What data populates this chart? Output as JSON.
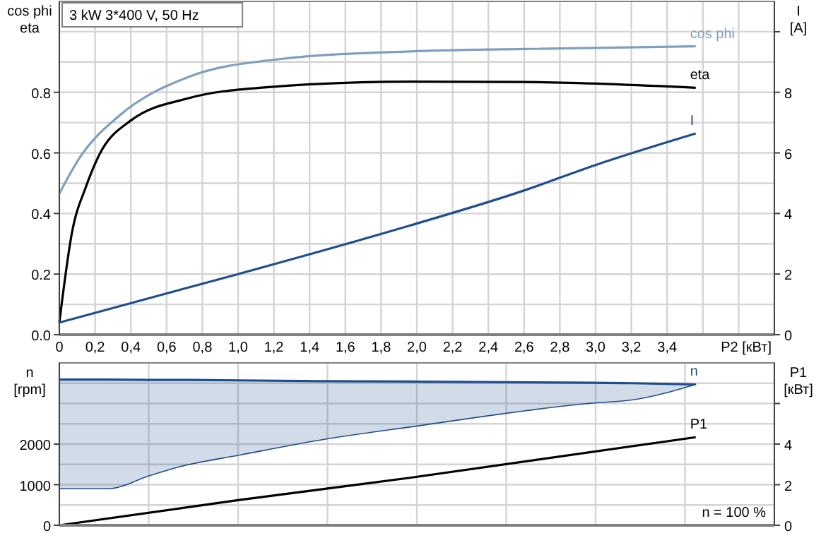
{
  "chart_data": [
    {
      "type": "line",
      "title": "3 kW   3*400 V, 50 Hz",
      "xlabel": "P2 [кВт]",
      "ylabel": "cos phi\neta",
      "y2label": "I\n[A]",
      "legend": false,
      "grid": true,
      "xlim": [
        0,
        4
      ],
      "xticks": [
        {
          "value": 0,
          "label": "0"
        },
        {
          "value": 0.2,
          "label": "0,2"
        },
        {
          "value": 0.4,
          "label": "0,4"
        },
        {
          "value": 0.6,
          "label": "0,6"
        },
        {
          "value": 0.8,
          "label": "0,8"
        },
        {
          "value": 1,
          "label": "1,0"
        },
        {
          "value": 1.2,
          "label": "1,2"
        },
        {
          "value": 1.4,
          "label": "1,4"
        },
        {
          "value": 1.6,
          "label": "1,6"
        },
        {
          "value": 1.8,
          "label": "1,8"
        },
        {
          "value": 2,
          "label": "2,0"
        },
        {
          "value": 2.2,
          "label": "2,2"
        },
        {
          "value": 2.4,
          "label": "2,4"
        },
        {
          "value": 2.6,
          "label": "2,6"
        },
        {
          "value": 2.8,
          "label": "2,8"
        },
        {
          "value": 3,
          "label": "3,0"
        },
        {
          "value": 3.2,
          "label": "3,2"
        },
        {
          "value": 3.4,
          "label": "3,4"
        },
        {
          "value": 3.6,
          "label": null
        },
        {
          "value": 3.8,
          "label": null
        }
      ],
      "ylim": [
        0,
        1.1
      ],
      "yticks": [
        {
          "value": 0,
          "label": "0.0"
        },
        {
          "value": 0.1,
          "label": null
        },
        {
          "value": 0.2,
          "label": "0.2"
        },
        {
          "value": 0.3,
          "label": null
        },
        {
          "value": 0.4,
          "label": "0.4"
        },
        {
          "value": 0.5,
          "label": null
        },
        {
          "value": 0.6,
          "label": "0.6"
        },
        {
          "value": 0.7,
          "label": null
        },
        {
          "value": 0.8,
          "label": "0.8"
        },
        {
          "value": 0.9,
          "label": null
        },
        {
          "value": 1.0,
          "label": null
        }
      ],
      "y2lim": [
        0,
        11
      ],
      "y2ticks": [
        0,
        2,
        4,
        6,
        8,
        {
          "value": 10,
          "label": null
        }
      ],
      "series": [
        {
          "name": "cos phi",
          "color": "#7f9fbf",
          "x": [
            0,
            0.12,
            0.33,
            0.72,
            1.24,
            1.96,
            2.6,
            3.56
          ],
          "values": [
            0.466,
            0.59,
            0.72,
            0.85,
            0.91,
            0.935,
            0.943,
            0.952
          ]
        },
        {
          "name": "eta",
          "color": "#000000",
          "x": [
            0,
            0.07,
            0.15,
            0.22,
            0.4,
            0.72,
            1.12,
            1.96,
            2.59,
            3.56
          ],
          "values": [
            0.04,
            0.335,
            0.49,
            0.59,
            0.707,
            0.78,
            0.815,
            0.835,
            0.834,
            0.815
          ]
        },
        {
          "name": "I",
          "color": "#1f4e8c",
          "axis": "y2",
          "x": [
            0,
            1.0,
            1.96,
            2.59,
            3.0,
            3.56
          ],
          "values": [
            0.4,
            2.0,
            3.6,
            4.74,
            5.6,
            6.64
          ]
        }
      ]
    },
    {
      "type": "line",
      "ylabel": "n\n[rpm]",
      "y2label": "P1\n[кВт]",
      "legend": false,
      "grid": true,
      "annotations": [
        "n = 100 %"
      ],
      "tick_labels": "y",
      "xlim": [
        0,
        4
      ],
      "xticks": [
        {
          "value": 0,
          "label": null
        },
        {
          "value": 0.5,
          "label": null
        },
        {
          "value": 1,
          "label": null
        },
        {
          "value": 1.5,
          "label": null
        },
        {
          "value": 2,
          "label": null
        },
        {
          "value": 2.5,
          "label": null
        },
        {
          "value": 3,
          "label": null
        },
        {
          "value": 3.5,
          "label": null
        }
      ],
      "ylim": [
        0,
        4000
      ],
      "yticks": [
        0,
        {
          "value": 500,
          "label": null
        },
        1000,
        {
          "value": 1500,
          "label": null
        },
        2000,
        {
          "value": 2500,
          "label": null
        },
        {
          "value": 3000,
          "label": null
        },
        {
          "value": 3500,
          "label": null
        }
      ],
      "y2lim": [
        0,
        8
      ],
      "y2ticks": [
        0,
        2,
        4,
        {
          "value": 6,
          "label": null
        }
      ],
      "series": [
        {
          "name": "n",
          "color": "#1f4e8c",
          "x": [
            0,
            0.27,
            0.51,
            0.67,
            1.01,
            1.5,
            1.96,
            2.98,
            3.21,
            3.56
          ],
          "values": [
            3590,
            3590,
            3580,
            3580,
            3570,
            3550,
            3540,
            3510,
            3500,
            3470
          ],
          "lower": [
            900,
            900,
            1230,
            1440,
            1730,
            2130,
            2420,
            3010,
            3090,
            3470
          ],
          "upper": [
            3590,
            3590,
            3580,
            3580,
            3570,
            3550,
            3540,
            3510,
            3500,
            3470
          ]
        },
        {
          "name": "P1",
          "color": "#000000",
          "axis": "y2",
          "x": [
            0,
            1.0,
            1.96,
            3.56
          ],
          "values": [
            0,
            1.24,
            2.34,
            4.34
          ]
        }
      ]
    }
  ]
}
